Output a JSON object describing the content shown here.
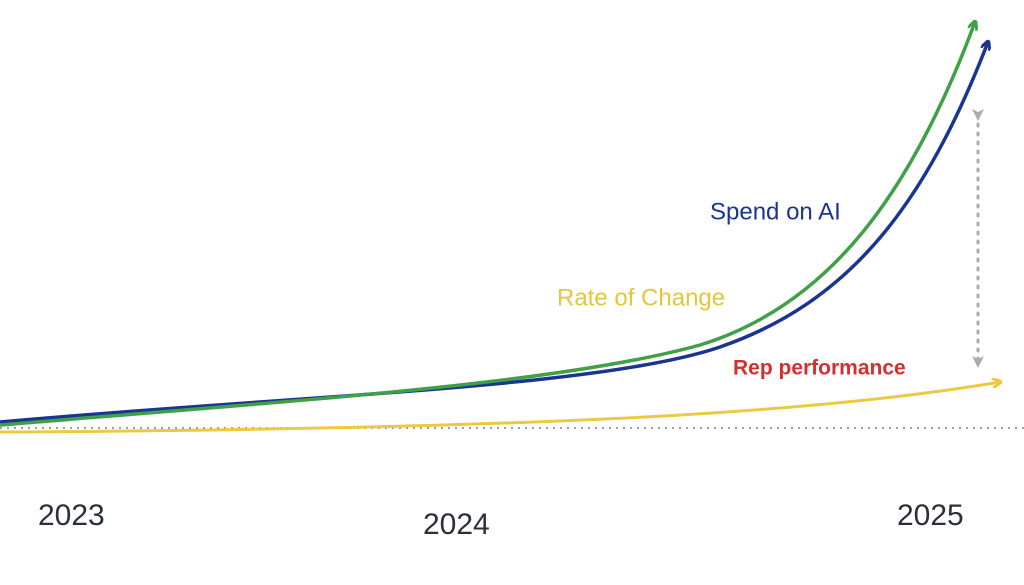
{
  "labels": {
    "spend_on_ai": "Spend on AI",
    "rate_of_change": "Rate of Change",
    "rep_performance": "Rep performance"
  },
  "years": [
    "2023",
    "2024",
    "2025"
  ]
}
